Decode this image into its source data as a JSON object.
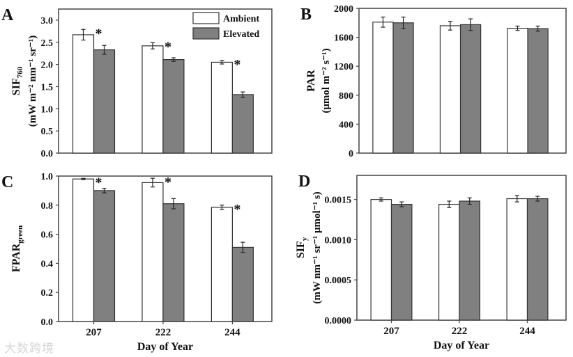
{
  "chart_data": [
    {
      "panel": "A",
      "type": "bar",
      "categories": [
        "207",
        "222",
        "244"
      ],
      "xlabel": "",
      "ylabel": {
        "main": "SIF",
        "sub": "760",
        "unit": "(mW m⁻² nm⁻¹ sr⁻¹)"
      },
      "ylim": [
        0,
        3.25
      ],
      "yticks": [
        "0.0",
        "0.5",
        "1.0",
        "1.5",
        "2.0",
        "2.5",
        "3.0"
      ],
      "ytick_values": [
        0,
        0.5,
        1.0,
        1.5,
        2.0,
        2.5,
        3.0
      ],
      "legend": {
        "position": "top-right",
        "entries": [
          "Ambient",
          "Elevated"
        ]
      },
      "series": [
        {
          "name": "Ambient",
          "values": [
            2.67,
            2.42,
            2.05
          ],
          "errors": [
            0.12,
            0.07,
            0.04
          ]
        },
        {
          "name": "Elevated",
          "values": [
            2.33,
            2.11,
            1.32
          ],
          "errors": [
            0.1,
            0.04,
            0.06
          ]
        }
      ],
      "significance": [
        "*",
        "*",
        "*"
      ]
    },
    {
      "panel": "B",
      "type": "bar",
      "categories": [
        "207",
        "222",
        "244"
      ],
      "xlabel": "",
      "ylabel": {
        "main": "PAR",
        "sub": "",
        "unit": "(μmol m⁻² s⁻¹)"
      },
      "ylim": [
        0,
        2000
      ],
      "yticks": [
        "0",
        "400",
        "800",
        "1200",
        "1600",
        "2000"
      ],
      "ytick_values": [
        0,
        400,
        800,
        1200,
        1600,
        2000
      ],
      "series": [
        {
          "name": "Ambient",
          "values": [
            1810,
            1760,
            1725
          ],
          "errors": [
            70,
            60,
            30
          ]
        },
        {
          "name": "Elevated",
          "values": [
            1800,
            1775,
            1720
          ],
          "errors": [
            80,
            80,
            35
          ]
        }
      ],
      "significance": [
        "",
        "",
        ""
      ]
    },
    {
      "panel": "C",
      "type": "bar",
      "categories": [
        "207",
        "222",
        "244"
      ],
      "xlabel": "Day of Year",
      "ylabel": {
        "main": "FPAR",
        "sub": "green",
        "unit": ""
      },
      "ylim": [
        0,
        1.0
      ],
      "yticks": [
        "0.0",
        "0.2",
        "0.4",
        "0.6",
        "0.8",
        "1.0"
      ],
      "ytick_values": [
        0,
        0.2,
        0.4,
        0.6,
        0.8,
        1.0
      ],
      "series": [
        {
          "name": "Ambient",
          "values": [
            0.98,
            0.955,
            0.785
          ],
          "errors": [
            0.004,
            0.03,
            0.015
          ]
        },
        {
          "name": "Elevated",
          "values": [
            0.9,
            0.81,
            0.51
          ],
          "errors": [
            0.015,
            0.035,
            0.035
          ]
        }
      ],
      "significance": [
        "*",
        "*",
        "*"
      ]
    },
    {
      "panel": "D",
      "type": "bar",
      "categories": [
        "207",
        "222",
        "244"
      ],
      "xlabel": "Day of Year",
      "ylabel": {
        "main": "SIF",
        "sub": "y",
        "unit": "(mW nm⁻¹ sr⁻¹ μmol⁻¹ s)"
      },
      "ylim": [
        0,
        0.0018
      ],
      "yticks": [
        "0.0000",
        "0.0005",
        "0.0010",
        "0.0015"
      ],
      "ytick_values": [
        0,
        0.0005,
        0.001,
        0.0015
      ],
      "series": [
        {
          "name": "Ambient",
          "values": [
            0.0015,
            0.00144,
            0.00151
          ],
          "errors": [
            2e-05,
            4e-05,
            4e-05
          ]
        },
        {
          "name": "Elevated",
          "values": [
            0.00144,
            0.00148,
            0.00151
          ],
          "errors": [
            3e-05,
            4e-05,
            3e-05
          ]
        }
      ],
      "significance": [
        "",
        "",
        ""
      ]
    }
  ],
  "colors": {
    "ambient": "#ffffff",
    "elevated": "#808080",
    "axis": "#444444"
  },
  "watermark": "大数跨境"
}
